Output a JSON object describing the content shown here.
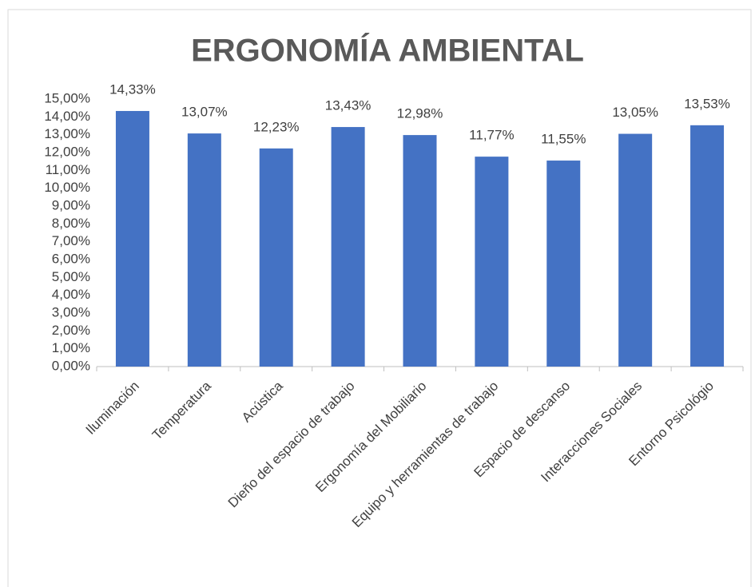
{
  "chart_data": {
    "type": "bar",
    "title": "ERGONOMÍA AMBIENTAL",
    "categories": [
      "Iluminación",
      "Temperatura",
      "Acústica",
      "Dieño del espacio de trabajo",
      "Ergonomía del Mobiliario",
      "Equipo y herramientas de trabajo",
      "Espacio de descanso",
      "Interacciones Sociales",
      "Entorno Psicológio"
    ],
    "values": [
      14.33,
      13.07,
      12.23,
      13.43,
      12.98,
      11.77,
      11.55,
      13.05,
      13.53
    ],
    "value_labels": [
      "14,33%",
      "13,07%",
      "12,23%",
      "13,43%",
      "12,98%",
      "11,77%",
      "11,55%",
      "13,05%",
      "13,53%"
    ],
    "color": "#4472c4",
    "ylim": [
      0,
      15
    ],
    "yticks": [
      {
        "value": 0,
        "label": "0,00%"
      },
      {
        "value": 1,
        "label": "1,00%"
      },
      {
        "value": 2,
        "label": "2,00%"
      },
      {
        "value": 3,
        "label": "3,00%"
      },
      {
        "value": 4,
        "label": "4,00%"
      },
      {
        "value": 5,
        "label": "5,00%"
      },
      {
        "value": 6,
        "label": "6,00%"
      },
      {
        "value": 7,
        "label": "7,00%"
      },
      {
        "value": 8,
        "label": "8,00%"
      },
      {
        "value": 9,
        "label": "9,00%"
      },
      {
        "value": 10,
        "label": "10,00%"
      },
      {
        "value": 11,
        "label": "11,00%"
      },
      {
        "value": 12,
        "label": "12,00%"
      },
      {
        "value": 13,
        "label": "13,00%"
      },
      {
        "value": 14,
        "label": "14,00%"
      },
      {
        "value": 15,
        "label": "15,00%"
      }
    ],
    "grid": false
  }
}
